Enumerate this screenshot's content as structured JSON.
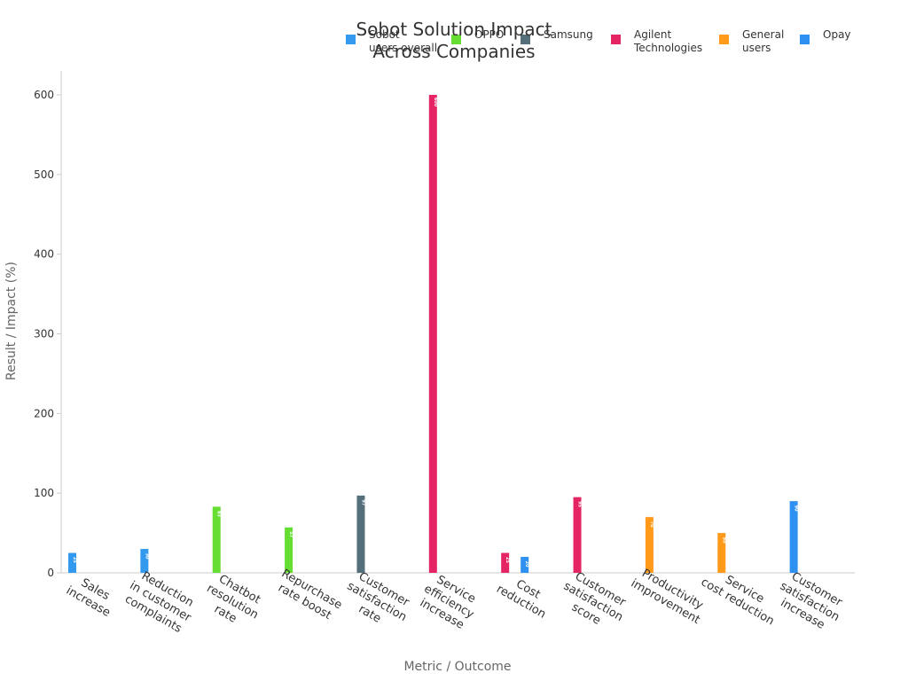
{
  "chart_data": {
    "type": "bar",
    "title": [
      "Sobot Solution Impact",
      "Across Companies"
    ],
    "xlabel": "Metric / Outcome",
    "ylabel": "Result / Impact (%)",
    "ylim": [
      0,
      630
    ],
    "yticks": [
      0,
      100,
      200,
      300,
      400,
      500,
      600
    ],
    "legend_position": "top-right",
    "grid": false,
    "categories": [
      [
        "Sales",
        "increase"
      ],
      [
        "Reduction",
        "in customer",
        "complaints"
      ],
      [
        "Chatbot",
        "resolution",
        "rate"
      ],
      [
        "Repurchase",
        "rate boost"
      ],
      [
        "Customer",
        "satisfaction",
        "rate"
      ],
      [
        "Service",
        "efficiency",
        "increase"
      ],
      [
        "Cost",
        "reduction"
      ],
      [
        "Customer",
        "satisfaction",
        "score"
      ],
      [
        "Productivity",
        "improvement"
      ],
      [
        "Service",
        "cost reduction"
      ],
      [
        "Customer",
        "satisfaction",
        "increase"
      ]
    ],
    "series": [
      {
        "name": [
          "Sobot",
          "users overall"
        ],
        "color": "#3399ee",
        "values": [
          25,
          30,
          null,
          null,
          null,
          null,
          null,
          null,
          null,
          null,
          null
        ]
      },
      {
        "name": [
          "OPPO"
        ],
        "color": "#66dd33",
        "values": [
          null,
          null,
          83,
          57,
          null,
          null,
          null,
          null,
          null,
          null,
          null
        ]
      },
      {
        "name": [
          "Samsung"
        ],
        "color": "#546e7a",
        "values": [
          null,
          null,
          null,
          null,
          97,
          null,
          null,
          null,
          null,
          null,
          null
        ]
      },
      {
        "name": [
          "Agilent",
          "Technologies"
        ],
        "color": "#e52563",
        "values": [
          null,
          null,
          null,
          null,
          null,
          600,
          25,
          95,
          null,
          null,
          null
        ]
      },
      {
        "name": [
          "General",
          "users"
        ],
        "color": "#ff9a1a",
        "values": [
          null,
          null,
          null,
          null,
          null,
          null,
          null,
          null,
          70,
          50,
          null
        ]
      },
      {
        "name": [
          "Opay"
        ],
        "color": "#2e90f0",
        "values": [
          null,
          null,
          null,
          null,
          null,
          null,
          20,
          null,
          null,
          null,
          90
        ]
      }
    ]
  }
}
